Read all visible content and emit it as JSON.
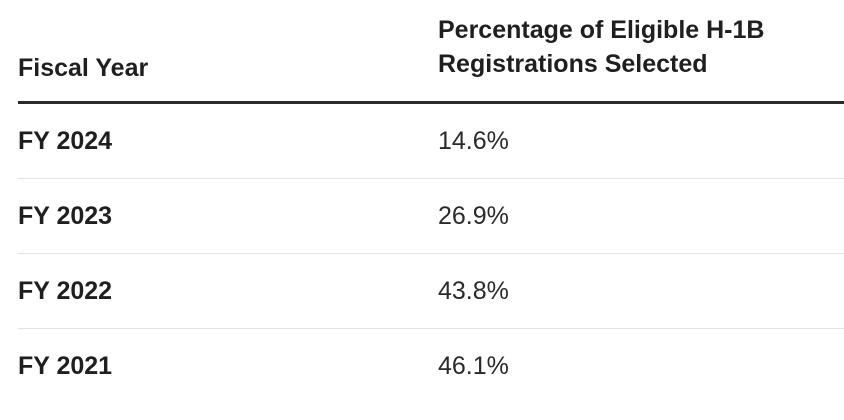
{
  "table": {
    "headers": {
      "fiscal_year": "Fiscal Year",
      "percentage": "Percentage of Eligible H-1B Registrations Selected"
    },
    "rows": [
      {
        "year": "FY 2024",
        "percentage": "14.6%"
      },
      {
        "year": "FY 2023",
        "percentage": "26.9%"
      },
      {
        "year": "FY 2022",
        "percentage": "43.8%"
      },
      {
        "year": "FY 2021",
        "percentage": "46.1%"
      }
    ]
  }
}
